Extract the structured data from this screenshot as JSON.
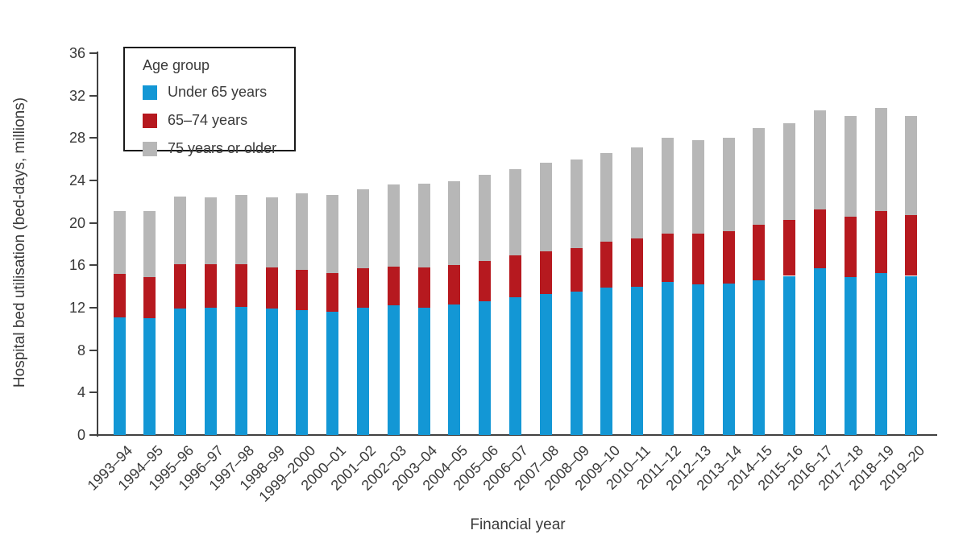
{
  "chart_data": {
    "type": "bar",
    "stacked": true,
    "xlabel": "Financial year",
    "ylabel": "Hospital bed utilisation (bed-days, millions)",
    "ylim": [
      0,
      36
    ],
    "yticks": [
      0,
      4,
      8,
      12,
      16,
      20,
      24,
      28,
      32,
      36
    ],
    "grid": false,
    "legend": {
      "title": "Age group",
      "position": "top-left-inside"
    },
    "categories": [
      "1993–94",
      "1994–95",
      "1995–96",
      "1996–97",
      "1997–98",
      "1998–99",
      "1999–2000",
      "2000–01",
      "2001–02",
      "2002–03",
      "2003–04",
      "2004–05",
      "2005–06",
      "2006–07",
      "2007–08",
      "2008–09",
      "2009–10",
      "2010–11",
      "2011–12",
      "2012–13",
      "2013–14",
      "2014–15",
      "2015–16",
      "2016–17",
      "2017–18",
      "2018–19",
      "2019–20"
    ],
    "series": [
      {
        "name": "Under 65 years",
        "color": "#1397d5",
        "values": [
          11.1,
          11.0,
          11.9,
          12.0,
          12.1,
          11.9,
          11.8,
          11.6,
          12.0,
          12.2,
          12.0,
          12.3,
          12.6,
          13.0,
          13.3,
          13.5,
          13.9,
          14.0,
          14.4,
          14.2,
          14.3,
          14.6,
          15.0,
          15.7,
          14.9,
          15.3,
          15.0
        ]
      },
      {
        "name": "65–74 years",
        "color": "#b6191f",
        "values": [
          4.1,
          3.9,
          4.2,
          4.1,
          4.0,
          3.9,
          3.8,
          3.7,
          3.7,
          3.7,
          3.8,
          3.7,
          3.8,
          3.9,
          4.0,
          4.1,
          4.3,
          4.5,
          4.6,
          4.8,
          4.9,
          5.2,
          5.3,
          5.6,
          5.7,
          5.8,
          5.7
        ]
      },
      {
        "name": "75 years or older",
        "color": "#b7b7b7",
        "values": [
          5.9,
          6.2,
          6.4,
          6.3,
          6.5,
          6.6,
          7.2,
          7.3,
          7.5,
          7.7,
          7.9,
          7.9,
          8.1,
          8.2,
          8.4,
          8.4,
          8.4,
          8.6,
          9.0,
          8.8,
          8.8,
          9.1,
          9.1,
          9.3,
          9.5,
          9.7,
          9.4
        ]
      }
    ],
    "colors": {
      "axis": "#414141",
      "text": "#3a3a3a"
    }
  }
}
